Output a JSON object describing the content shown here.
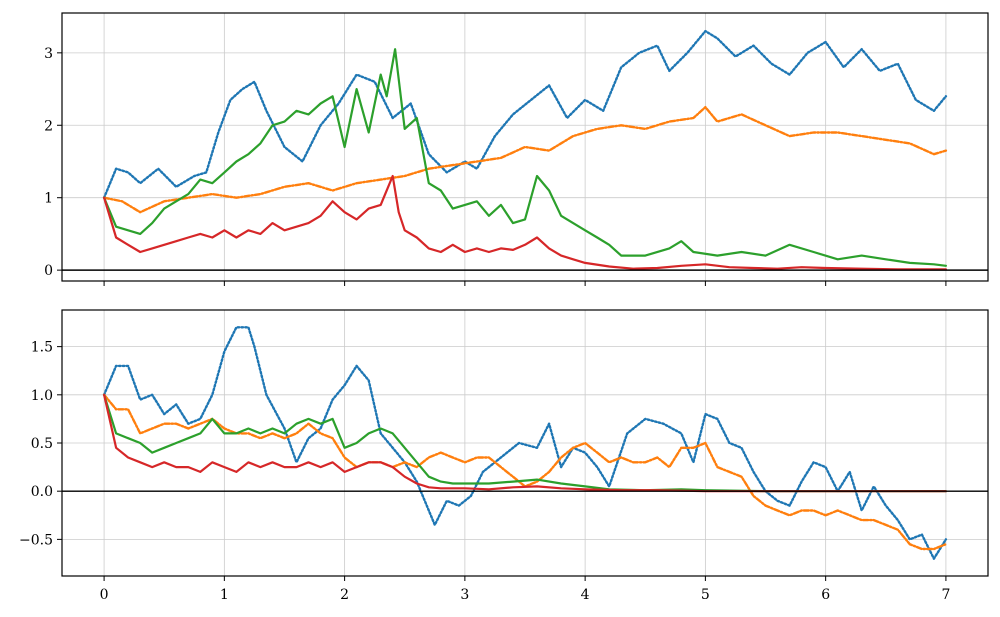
{
  "chart_data": [
    {
      "type": "line",
      "title": "",
      "xlabel": "",
      "ylabel": "",
      "xlim": [
        -0.35,
        7.35
      ],
      "ylim": [
        -0.15,
        3.55
      ],
      "x_ticks": [
        0,
        1,
        2,
        3,
        4,
        5,
        6,
        7
      ],
      "x_tick_labels": [
        "",
        "",
        "",
        "",
        "",
        "",
        "",
        ""
      ],
      "y_ticks": [
        0,
        1,
        2,
        3
      ],
      "y_tick_labels": [
        "0",
        "1",
        "2",
        "3"
      ],
      "grid": true,
      "zero_line": 0,
      "series": [
        {
          "color": "#1f77b4",
          "style": "dotted",
          "x": [
            0,
            0.1,
            0.2,
            0.3,
            0.45,
            0.6,
            0.75,
            0.85,
            0.95,
            1.05,
            1.15,
            1.25,
            1.35,
            1.5,
            1.65,
            1.8,
            1.95,
            2.1,
            2.25,
            2.4,
            2.55,
            2.7,
            2.85,
            3.0,
            3.1,
            3.25,
            3.4,
            3.55,
            3.7,
            3.85,
            4.0,
            4.15,
            4.3,
            4.45,
            4.6,
            4.7,
            4.85,
            5.0,
            5.1,
            5.25,
            5.4,
            5.55,
            5.7,
            5.85,
            6.0,
            6.15,
            6.3,
            6.45,
            6.6,
            6.75,
            6.9,
            7.0
          ],
          "y": [
            1.0,
            1.4,
            1.35,
            1.2,
            1.4,
            1.15,
            1.3,
            1.35,
            1.9,
            2.35,
            2.5,
            2.6,
            2.2,
            1.7,
            1.5,
            2.0,
            2.3,
            2.7,
            2.6,
            2.1,
            2.3,
            1.6,
            1.35,
            1.5,
            1.4,
            1.85,
            2.15,
            2.35,
            2.55,
            2.1,
            2.35,
            2.2,
            2.8,
            3.0,
            3.1,
            2.75,
            3.0,
            3.3,
            3.2,
            2.95,
            3.1,
            2.85,
            2.7,
            3.0,
            3.15,
            2.8,
            3.05,
            2.75,
            2.85,
            2.35,
            2.2,
            2.4
          ]
        },
        {
          "color": "#ff7f0e",
          "style": "dashdot",
          "x": [
            0,
            0.15,
            0.3,
            0.5,
            0.7,
            0.9,
            1.1,
            1.3,
            1.5,
            1.7,
            1.9,
            2.1,
            2.3,
            2.5,
            2.7,
            2.9,
            3.1,
            3.3,
            3.5,
            3.7,
            3.9,
            4.1,
            4.3,
            4.5,
            4.7,
            4.9,
            5.0,
            5.1,
            5.3,
            5.5,
            5.7,
            5.9,
            6.1,
            6.3,
            6.5,
            6.7,
            6.9,
            7.0
          ],
          "y": [
            1.0,
            0.95,
            0.8,
            0.95,
            1.0,
            1.05,
            1.0,
            1.05,
            1.15,
            1.2,
            1.1,
            1.2,
            1.25,
            1.3,
            1.4,
            1.45,
            1.5,
            1.55,
            1.7,
            1.65,
            1.85,
            1.95,
            2.0,
            1.95,
            2.05,
            2.1,
            2.25,
            2.05,
            2.15,
            2.0,
            1.85,
            1.9,
            1.9,
            1.85,
            1.8,
            1.75,
            1.6,
            1.65
          ]
        },
        {
          "color": "#2ca02c",
          "style": "solid",
          "x": [
            0,
            0.1,
            0.2,
            0.3,
            0.4,
            0.5,
            0.6,
            0.7,
            0.8,
            0.9,
            1.0,
            1.1,
            1.2,
            1.3,
            1.4,
            1.5,
            1.6,
            1.7,
            1.8,
            1.9,
            2.0,
            2.05,
            2.1,
            2.2,
            2.3,
            2.35,
            2.42,
            2.5,
            2.6,
            2.7,
            2.8,
            2.9,
            3.0,
            3.1,
            3.2,
            3.3,
            3.4,
            3.5,
            3.6,
            3.7,
            3.8,
            3.9,
            4.0,
            4.1,
            4.2,
            4.3,
            4.5,
            4.7,
            4.8,
            4.9,
            5.1,
            5.3,
            5.5,
            5.7,
            5.9,
            6.1,
            6.3,
            6.5,
            6.7,
            6.9,
            7.0
          ],
          "y": [
            1.0,
            0.6,
            0.55,
            0.5,
            0.65,
            0.85,
            0.95,
            1.05,
            1.25,
            1.2,
            1.35,
            1.5,
            1.6,
            1.75,
            2.0,
            2.05,
            2.2,
            2.15,
            2.3,
            2.4,
            1.7,
            2.1,
            2.5,
            1.9,
            2.7,
            2.4,
            3.05,
            1.95,
            2.1,
            1.2,
            1.1,
            0.85,
            0.9,
            0.95,
            0.75,
            0.9,
            0.65,
            0.7,
            1.3,
            1.1,
            0.75,
            0.65,
            0.55,
            0.45,
            0.35,
            0.2,
            0.2,
            0.3,
            0.4,
            0.25,
            0.2,
            0.25,
            0.2,
            0.35,
            0.25,
            0.15,
            0.2,
            0.15,
            0.1,
            0.08,
            0.06
          ]
        },
        {
          "color": "#d62728",
          "style": "solid",
          "x": [
            0,
            0.1,
            0.2,
            0.3,
            0.4,
            0.5,
            0.6,
            0.7,
            0.8,
            0.9,
            1.0,
            1.1,
            1.2,
            1.3,
            1.4,
            1.5,
            1.6,
            1.7,
            1.8,
            1.9,
            2.0,
            2.1,
            2.2,
            2.3,
            2.4,
            2.45,
            2.5,
            2.6,
            2.7,
            2.8,
            2.9,
            3.0,
            3.1,
            3.2,
            3.3,
            3.4,
            3.5,
            3.6,
            3.7,
            3.8,
            3.9,
            4.0,
            4.2,
            4.4,
            4.6,
            4.8,
            5.0,
            5.2,
            5.4,
            5.6,
            5.8,
            6.0,
            6.3,
            6.6,
            7.0
          ],
          "y": [
            1.0,
            0.45,
            0.35,
            0.25,
            0.3,
            0.35,
            0.4,
            0.45,
            0.5,
            0.45,
            0.55,
            0.45,
            0.55,
            0.5,
            0.65,
            0.55,
            0.6,
            0.65,
            0.75,
            0.95,
            0.8,
            0.7,
            0.85,
            0.9,
            1.3,
            0.8,
            0.55,
            0.45,
            0.3,
            0.25,
            0.35,
            0.25,
            0.3,
            0.25,
            0.3,
            0.28,
            0.35,
            0.45,
            0.3,
            0.2,
            0.15,
            0.1,
            0.05,
            0.02,
            0.03,
            0.06,
            0.08,
            0.04,
            0.03,
            0.02,
            0.04,
            0.03,
            0.02,
            0.01,
            0.01
          ]
        }
      ]
    },
    {
      "type": "line",
      "title": "",
      "xlabel": "",
      "ylabel": "",
      "xlim": [
        -0.35,
        7.35
      ],
      "ylim": [
        -0.88,
        1.88
      ],
      "x_ticks": [
        0,
        1,
        2,
        3,
        4,
        5,
        6,
        7
      ],
      "x_tick_labels": [
        "0",
        "1",
        "2",
        "3",
        "4",
        "5",
        "6",
        "7"
      ],
      "y_ticks": [
        -0.5,
        0.0,
        0.5,
        1.0,
        1.5
      ],
      "y_tick_labels": [
        "−0.5",
        "0.0",
        "0.5",
        "1.0",
        "1.5"
      ],
      "grid": true,
      "zero_line": 0,
      "series": [
        {
          "color": "#1f77b4",
          "style": "dotted",
          "x": [
            0,
            0.1,
            0.2,
            0.3,
            0.4,
            0.5,
            0.6,
            0.7,
            0.8,
            0.9,
            1.0,
            1.1,
            1.2,
            1.25,
            1.35,
            1.5,
            1.6,
            1.7,
            1.8,
            1.9,
            2.0,
            2.1,
            2.2,
            2.3,
            2.4,
            2.5,
            2.6,
            2.7,
            2.75,
            2.85,
            2.95,
            3.05,
            3.15,
            3.3,
            3.45,
            3.6,
            3.7,
            3.8,
            3.9,
            4.0,
            4.1,
            4.2,
            4.35,
            4.5,
            4.65,
            4.8,
            4.9,
            5.0,
            5.1,
            5.2,
            5.3,
            5.4,
            5.5,
            5.6,
            5.7,
            5.8,
            5.9,
            6.0,
            6.1,
            6.2,
            6.3,
            6.4,
            6.5,
            6.6,
            6.7,
            6.8,
            6.9,
            7.0
          ],
          "y": [
            1.0,
            1.3,
            1.3,
            0.95,
            1.0,
            0.8,
            0.9,
            0.7,
            0.75,
            1.0,
            1.45,
            1.7,
            1.7,
            1.5,
            1.0,
            0.65,
            0.3,
            0.55,
            0.65,
            0.95,
            1.1,
            1.3,
            1.15,
            0.6,
            0.45,
            0.3,
            0.1,
            -0.2,
            -0.35,
            -0.1,
            -0.15,
            -0.05,
            0.2,
            0.35,
            0.5,
            0.45,
            0.7,
            0.25,
            0.45,
            0.4,
            0.25,
            0.05,
            0.6,
            0.75,
            0.7,
            0.6,
            0.3,
            0.8,
            0.75,
            0.5,
            0.45,
            0.2,
            0.0,
            -0.1,
            -0.15,
            0.1,
            0.3,
            0.25,
            0.0,
            0.2,
            -0.2,
            0.05,
            -0.15,
            -0.3,
            -0.5,
            -0.45,
            -0.7,
            -0.5
          ]
        },
        {
          "color": "#ff7f0e",
          "style": "dashdot",
          "x": [
            0,
            0.1,
            0.2,
            0.3,
            0.4,
            0.5,
            0.6,
            0.7,
            0.8,
            0.9,
            1.0,
            1.1,
            1.2,
            1.3,
            1.4,
            1.5,
            1.6,
            1.7,
            1.8,
            1.9,
            2.0,
            2.1,
            2.2,
            2.3,
            2.4,
            2.5,
            2.6,
            2.7,
            2.8,
            2.9,
            3.0,
            3.1,
            3.2,
            3.3,
            3.4,
            3.5,
            3.6,
            3.7,
            3.8,
            3.9,
            4.0,
            4.1,
            4.2,
            4.3,
            4.4,
            4.5,
            4.6,
            4.7,
            4.8,
            4.9,
            5.0,
            5.1,
            5.2,
            5.3,
            5.4,
            5.5,
            5.6,
            5.7,
            5.8,
            5.9,
            6.0,
            6.1,
            6.2,
            6.3,
            6.4,
            6.5,
            6.6,
            6.7,
            6.8,
            6.9,
            7.0
          ],
          "y": [
            1.0,
            0.85,
            0.85,
            0.6,
            0.65,
            0.7,
            0.7,
            0.65,
            0.7,
            0.75,
            0.65,
            0.6,
            0.6,
            0.55,
            0.6,
            0.55,
            0.6,
            0.7,
            0.6,
            0.55,
            0.35,
            0.25,
            0.3,
            0.3,
            0.25,
            0.3,
            0.25,
            0.35,
            0.4,
            0.35,
            0.3,
            0.35,
            0.35,
            0.25,
            0.15,
            0.05,
            0.1,
            0.2,
            0.35,
            0.45,
            0.5,
            0.4,
            0.3,
            0.35,
            0.3,
            0.3,
            0.35,
            0.25,
            0.45,
            0.45,
            0.5,
            0.25,
            0.2,
            0.15,
            -0.05,
            -0.15,
            -0.2,
            -0.25,
            -0.2,
            -0.2,
            -0.25,
            -0.2,
            -0.25,
            -0.3,
            -0.3,
            -0.35,
            -0.4,
            -0.55,
            -0.6,
            -0.6,
            -0.55
          ]
        },
        {
          "color": "#2ca02c",
          "style": "solid",
          "x": [
            0,
            0.1,
            0.2,
            0.3,
            0.4,
            0.5,
            0.6,
            0.7,
            0.8,
            0.9,
            1.0,
            1.1,
            1.2,
            1.3,
            1.4,
            1.5,
            1.6,
            1.7,
            1.8,
            1.9,
            2.0,
            2.1,
            2.2,
            2.3,
            2.4,
            2.5,
            2.6,
            2.7,
            2.8,
            2.9,
            3.0,
            3.2,
            3.4,
            3.6,
            3.8,
            4.0,
            4.2,
            4.5,
            4.8,
            5.0,
            5.5,
            6.0,
            6.5,
            7.0
          ],
          "y": [
            1.0,
            0.6,
            0.55,
            0.5,
            0.4,
            0.45,
            0.5,
            0.55,
            0.6,
            0.75,
            0.6,
            0.6,
            0.65,
            0.6,
            0.65,
            0.6,
            0.7,
            0.75,
            0.7,
            0.75,
            0.45,
            0.5,
            0.6,
            0.65,
            0.6,
            0.45,
            0.3,
            0.15,
            0.1,
            0.08,
            0.08,
            0.08,
            0.1,
            0.12,
            0.08,
            0.05,
            0.02,
            0.01,
            0.02,
            0.01,
            0.0,
            0.0,
            0.0,
            0.0
          ]
        },
        {
          "color": "#d62728",
          "style": "solid",
          "x": [
            0,
            0.1,
            0.2,
            0.3,
            0.4,
            0.5,
            0.6,
            0.7,
            0.8,
            0.9,
            1.0,
            1.1,
            1.2,
            1.3,
            1.4,
            1.5,
            1.6,
            1.7,
            1.8,
            1.9,
            2.0,
            2.1,
            2.2,
            2.3,
            2.4,
            2.5,
            2.6,
            2.7,
            2.8,
            2.9,
            3.0,
            3.2,
            3.4,
            3.6,
            3.8,
            4.0,
            4.3,
            4.6,
            5.0,
            5.5,
            6.0,
            6.5,
            7.0
          ],
          "y": [
            1.0,
            0.45,
            0.35,
            0.3,
            0.25,
            0.3,
            0.25,
            0.25,
            0.2,
            0.3,
            0.25,
            0.2,
            0.3,
            0.25,
            0.3,
            0.25,
            0.25,
            0.3,
            0.25,
            0.3,
            0.2,
            0.25,
            0.3,
            0.3,
            0.25,
            0.15,
            0.08,
            0.04,
            0.03,
            0.03,
            0.03,
            0.02,
            0.04,
            0.05,
            0.03,
            0.02,
            0.01,
            0.01,
            0.0,
            0.0,
            0.0,
            0.0,
            0.0
          ]
        }
      ]
    }
  ]
}
